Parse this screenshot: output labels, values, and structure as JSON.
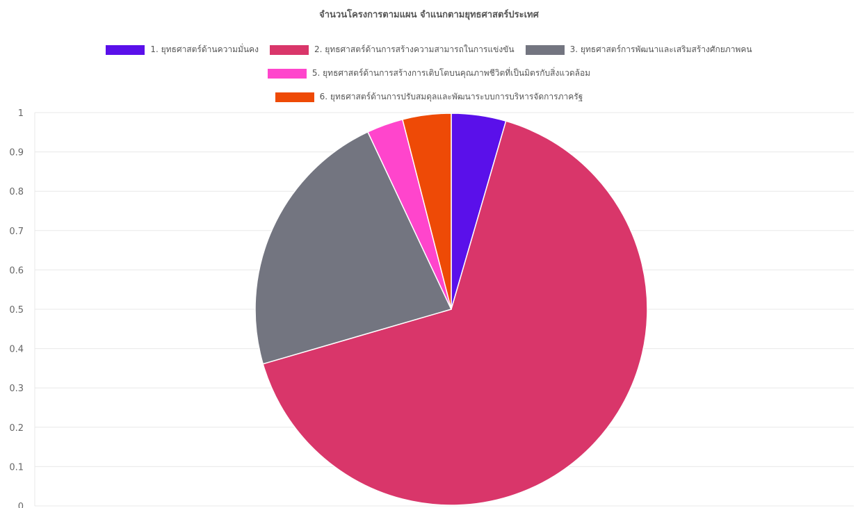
{
  "chart_data": {
    "type": "pie",
    "title": "จำนวนโครงการตามแผน จำแนกตามยุทธศาสตร์ประเทศ",
    "slices": [
      {
        "label": "1. ยุทธศาสตร์ด้านความมั่นคง",
        "value": 4.5,
        "color": "#5a10ea"
      },
      {
        "label": "2. ยุทธศาสตร์ด้านการสร้างความสามารถในการแข่งขัน",
        "value": 66,
        "color": "#d9366a"
      },
      {
        "label": "3. ยุทธศาสตร์การพัฒนาและเสริมสร้างศักยภาพคน",
        "value": 22.5,
        "color": "#737580"
      },
      {
        "label": "5. ยุทธศาสตร์ด้านการสร้างการเติบโตบนคุณภาพชีวิตที่เป็นมิตรกับสิ่งแวดล้อม",
        "value": 3,
        "color": "#ff45cc"
      },
      {
        "label": "6. ยุทธศาสตร์ด้านการปรับสมดุลและพัฒนาระบบการบริหารจัดการภาครัฐ",
        "value": 4,
        "color": "#ee4a06"
      }
    ],
    "y_axis": {
      "min": 0,
      "max": 1,
      "ticks": [
        "0",
        "0.1",
        "0.2",
        "0.3",
        "0.4",
        "0.5",
        "0.6",
        "0.7",
        "0.8",
        "0.9",
        "1"
      ]
    },
    "grid": true,
    "legend_position": "top"
  }
}
